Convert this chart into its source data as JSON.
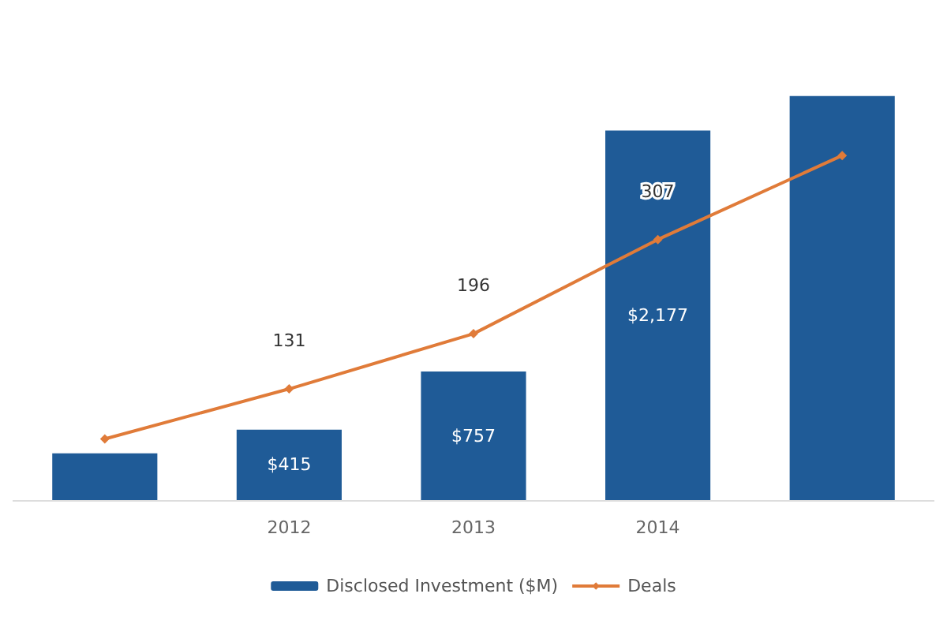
{
  "chart_data": {
    "type": "bar",
    "categories": [
      null,
      "2012",
      "2013",
      "2014",
      null
    ],
    "series": [
      {
        "name": "Disclosed Investment ($M)",
        "color": "#1f5b97",
        "values": [
          275,
          415,
          757,
          2177,
          2380
        ],
        "value_labels": [
          null,
          "$415",
          "$757",
          "$2,177",
          null
        ]
      },
      {
        "name": "Deals",
        "type": "line",
        "axis": "y2",
        "color": "#e07b39",
        "values": [
          72,
          131,
          196,
          307,
          406
        ],
        "value_labels": [
          null,
          "131",
          "196",
          "307",
          null
        ]
      }
    ],
    "legend": "bottom",
    "grid": false,
    "marker": "diamond",
    "line_style": "solid"
  }
}
